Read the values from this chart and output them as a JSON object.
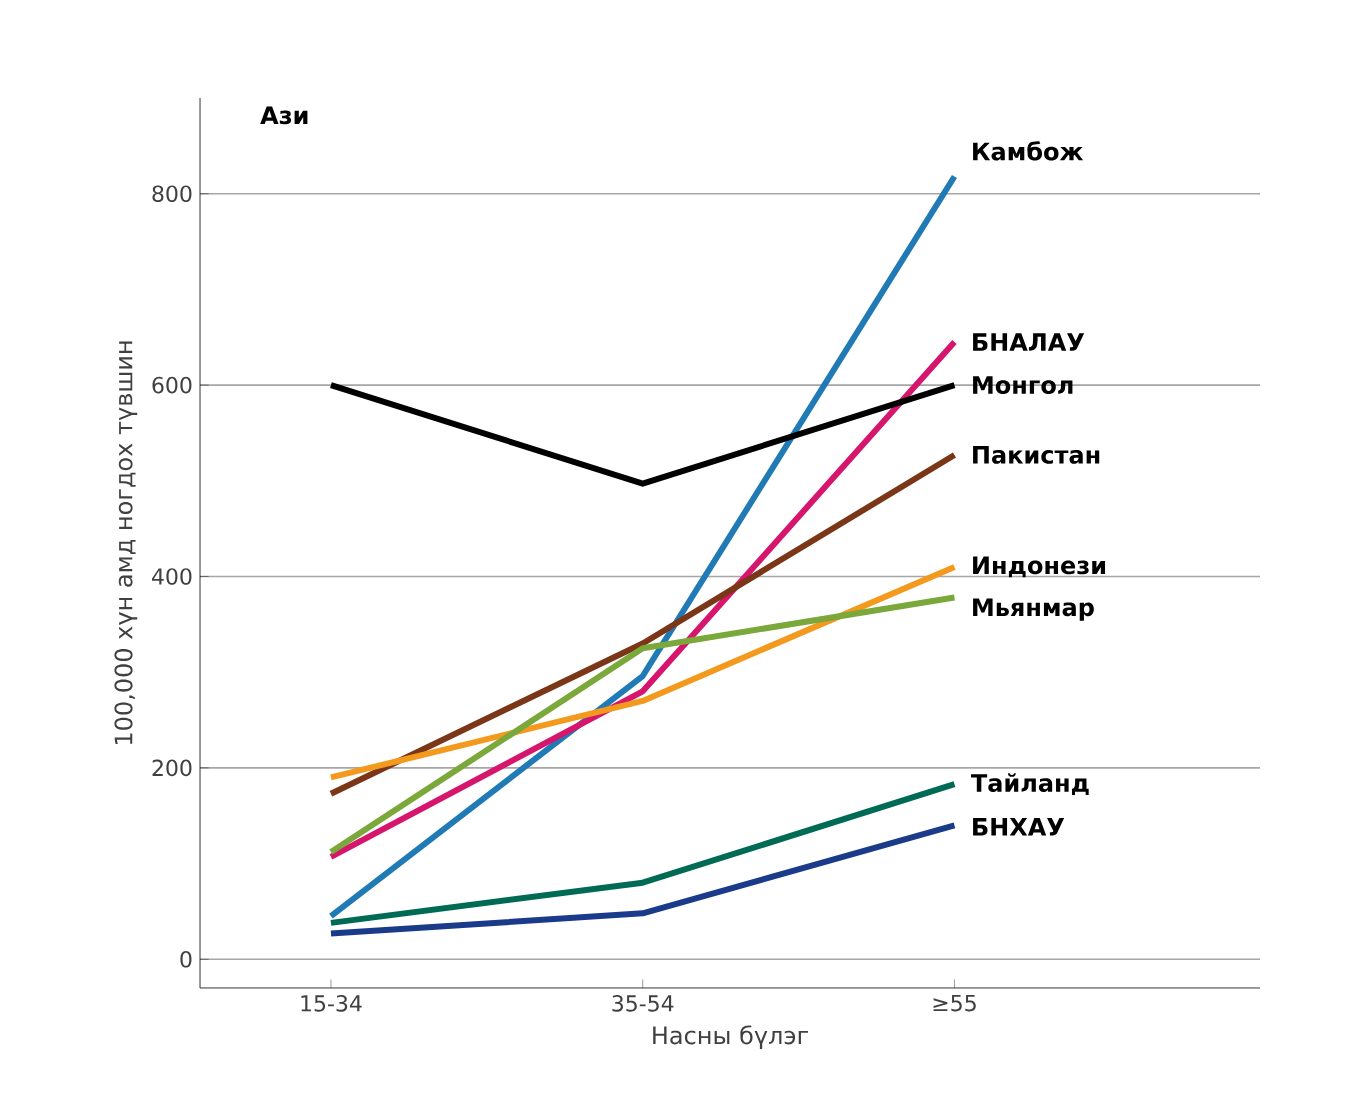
{
  "chart_data": {
    "type": "line",
    "title": "Ази",
    "xlabel": "Насны бүлэг",
    "ylabel": "100,000 хүн амд ногдох түвшин",
    "categories": [
      "15-34",
      "35-54",
      "≥55"
    ],
    "ylim": [
      -30,
      900
    ],
    "yticks": [
      0,
      200,
      400,
      600,
      800
    ],
    "grid": "y",
    "marker": "none",
    "line_style": "solid",
    "series": [
      {
        "name": "Камбож",
        "color": "#1f7ab5",
        "values": [
          45,
          296,
          818
        ]
      },
      {
        "name": "БНАЛАУ",
        "color": "#d6156c",
        "values": [
          107,
          280,
          645
        ]
      },
      {
        "name": "Монгол",
        "color": "#000000",
        "values": [
          600,
          497,
          600
        ]
      },
      {
        "name": "Пакистан",
        "color": "#7b3517",
        "values": [
          173,
          330,
          527
        ]
      },
      {
        "name": "Индонези",
        "color": "#f39a1e",
        "values": [
          190,
          270,
          410
        ]
      },
      {
        "name": "Мьянмар",
        "color": "#7aa83a",
        "values": [
          112,
          325,
          378
        ]
      },
      {
        "name": "Тайланд",
        "color": "#006b54",
        "values": [
          38,
          80,
          183
        ]
      },
      {
        "name": "БНХАУ",
        "color": "#1a3a8a",
        "values": [
          27,
          48,
          140
        ]
      }
    ]
  }
}
